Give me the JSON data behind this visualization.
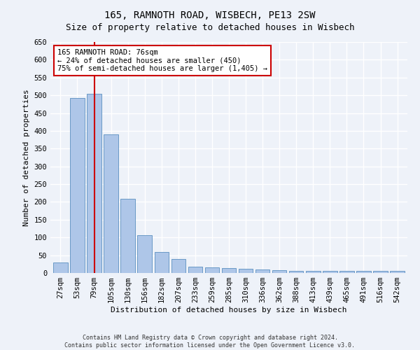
{
  "title": "165, RAMNOTH ROAD, WISBECH, PE13 2SW",
  "subtitle": "Size of property relative to detached houses in Wisbech",
  "xlabel": "Distribution of detached houses by size in Wisbech",
  "ylabel": "Number of detached properties",
  "footnote1": "Contains HM Land Registry data © Crown copyright and database right 2024.",
  "footnote2": "Contains public sector information licensed under the Open Government Licence v3.0.",
  "categories": [
    "27sqm",
    "53sqm",
    "79sqm",
    "105sqm",
    "130sqm",
    "156sqm",
    "182sqm",
    "207sqm",
    "233sqm",
    "259sqm",
    "285sqm",
    "310sqm",
    "336sqm",
    "362sqm",
    "388sqm",
    "413sqm",
    "439sqm",
    "465sqm",
    "491sqm",
    "516sqm",
    "542sqm"
  ],
  "values": [
    30,
    492,
    505,
    390,
    209,
    107,
    59,
    40,
    18,
    16,
    13,
    11,
    9,
    7,
    5,
    5,
    5,
    5,
    5,
    5,
    5
  ],
  "bar_color": "#aec6e8",
  "bar_edge_color": "#5a8fc0",
  "vline_idx": 2,
  "vline_color": "#cc0000",
  "annotation_text": "165 RAMNOTH ROAD: 76sqm\n← 24% of detached houses are smaller (450)\n75% of semi-detached houses are larger (1,405) →",
  "annotation_box_color": "#ffffff",
  "annotation_box_edge": "#cc0000",
  "ylim": [
    0,
    650
  ],
  "yticks": [
    0,
    50,
    100,
    150,
    200,
    250,
    300,
    350,
    400,
    450,
    500,
    550,
    600,
    650
  ],
  "bg_color": "#eef2f9",
  "grid_color": "#ffffff",
  "title_fontsize": 10,
  "axis_fontsize": 8,
  "tick_fontsize": 7.5
}
